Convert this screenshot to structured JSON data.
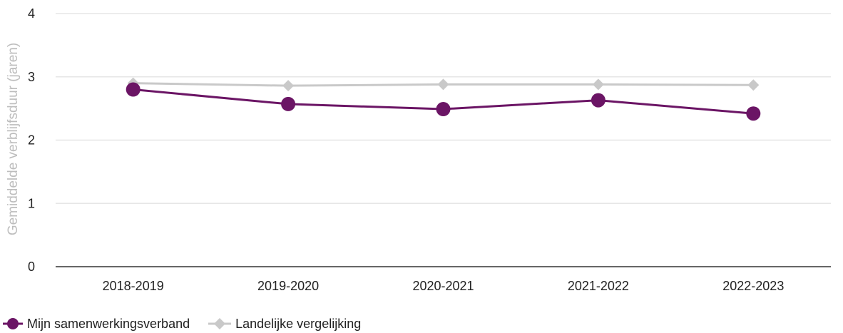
{
  "chart_data": {
    "type": "line",
    "categories": [
      "2018-2019",
      "2019-2020",
      "2020-2021",
      "2021-2022",
      "2022-2023"
    ],
    "ylabel": "Gemiddelde verblijfsduur (jaren)",
    "xlabel": "",
    "ylim": [
      0,
      4
    ],
    "yticks": [
      0,
      1,
      2,
      3,
      4
    ],
    "grid": true,
    "legend_position": "bottom-left",
    "series": [
      {
        "name": "Mijn samenwerkingsverband",
        "values": [
          2.8,
          2.57,
          2.49,
          2.63,
          2.42
        ],
        "color": "#6b1565",
        "marker": "circle"
      },
      {
        "name": "Landelijke vergelijking",
        "values": [
          2.9,
          2.86,
          2.88,
          2.88,
          2.87
        ],
        "color": "#c9c9c9",
        "marker": "diamond"
      }
    ]
  }
}
